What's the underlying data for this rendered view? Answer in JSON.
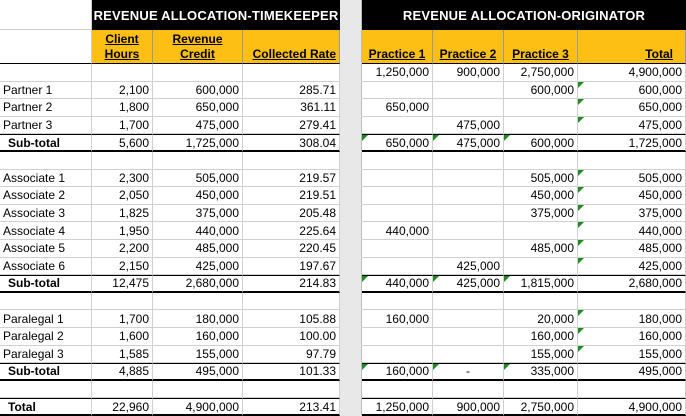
{
  "headers": {
    "timekeeper_title": "REVENUE ALLOCATION-TIMEKEEPER",
    "originator_title": "REVENUE ALLOCATION-ORIGINATOR",
    "client_hours_line1": "Client",
    "client_hours_line2": "Hours",
    "revenue_credit_line1": "Revenue",
    "revenue_credit_line2": "Credit",
    "collected_rate": "Collected Rate",
    "practice1": "Practice 1",
    "practice2": "Practice 2",
    "practice3": "Practice 3",
    "total": "Total"
  },
  "top_totals": {
    "p1": "1,250,000",
    "p2": "900,000",
    "p3": "2,750,000",
    "total": "4,900,000"
  },
  "partners": [
    {
      "name": "Partner 1",
      "hours": "2,100",
      "credit": "600,000",
      "rate": "285.71",
      "p1": "",
      "p2": "",
      "p3": "600,000",
      "total": "600,000"
    },
    {
      "name": "Partner 2",
      "hours": "1,800",
      "credit": "650,000",
      "rate": "361.11",
      "p1": "650,000",
      "p2": "",
      "p3": "",
      "total": "650,000"
    },
    {
      "name": "Partner 3",
      "hours": "1,700",
      "credit": "475,000",
      "rate": "279.41",
      "p1": "",
      "p2": "475,000",
      "p3": "",
      "total": "475,000"
    }
  ],
  "partners_subtotal": {
    "name": "Sub-total",
    "hours": "5,600",
    "credit": "1,725,000",
    "rate": "308.04",
    "p1": "650,000",
    "p2": "475,000",
    "p3": "600,000",
    "total": "1,725,000"
  },
  "associates": [
    {
      "name": "Associate 1",
      "hours": "2,300",
      "credit": "505,000",
      "rate": "219.57",
      "p1": "",
      "p2": "",
      "p3": "505,000",
      "total": "505,000"
    },
    {
      "name": "Associate 2",
      "hours": "2,050",
      "credit": "450,000",
      "rate": "219.51",
      "p1": "",
      "p2": "",
      "p3": "450,000",
      "total": "450,000"
    },
    {
      "name": "Associate 3",
      "hours": "1,825",
      "credit": "375,000",
      "rate": "205.48",
      "p1": "",
      "p2": "",
      "p3": "375,000",
      "total": "375,000"
    },
    {
      "name": "Associate 4",
      "hours": "1,950",
      "credit": "440,000",
      "rate": "225.64",
      "p1": "440,000",
      "p2": "",
      "p3": "",
      "total": "440,000"
    },
    {
      "name": "Associate 5",
      "hours": "2,200",
      "credit": "485,000",
      "rate": "220.45",
      "p1": "",
      "p2": "",
      "p3": "485,000",
      "total": "485,000"
    },
    {
      "name": "Associate 6",
      "hours": "2,150",
      "credit": "425,000",
      "rate": "197.67",
      "p1": "",
      "p2": "425,000",
      "p3": "",
      "total": "425,000"
    }
  ],
  "associates_subtotal": {
    "name": "Sub-total",
    "hours": "12,475",
    "credit": "2,680,000",
    "rate": "214.83",
    "p1": "440,000",
    "p2": "425,000",
    "p3": "1,815,000",
    "total": "2,680,000"
  },
  "paralegals": [
    {
      "name": "Paralegal 1",
      "hours": "1,700",
      "credit": "180,000",
      "rate": "105.88",
      "p1": "160,000",
      "p2": "",
      "p3": "20,000",
      "total": "180,000"
    },
    {
      "name": "Paralegal 2",
      "hours": "1,600",
      "credit": "160,000",
      "rate": "100.00",
      "p1": "",
      "p2": "",
      "p3": "160,000",
      "total": "160,000"
    },
    {
      "name": "Paralegal 3",
      "hours": "1,585",
      "credit": "155,000",
      "rate": "97.79",
      "p1": "",
      "p2": "",
      "p3": "155,000",
      "total": "155,000"
    }
  ],
  "paralegals_subtotal": {
    "name": "Sub-total",
    "hours": "4,885",
    "credit": "495,000",
    "rate": "101.33",
    "p1": "160,000",
    "p2": "-",
    "p3": "335,000",
    "total": "495,000"
  },
  "grand_total": {
    "name": "Total",
    "hours": "22,960",
    "credit": "4,900,000",
    "rate": "213.41",
    "p1": "1,250,000",
    "p2": "900,000",
    "p3": "2,750,000",
    "total": "4,900,000"
  },
  "colors": {
    "header_black": "#000000",
    "header_yellow": "#fdbf14",
    "marker_green": "#1f8a1f"
  }
}
